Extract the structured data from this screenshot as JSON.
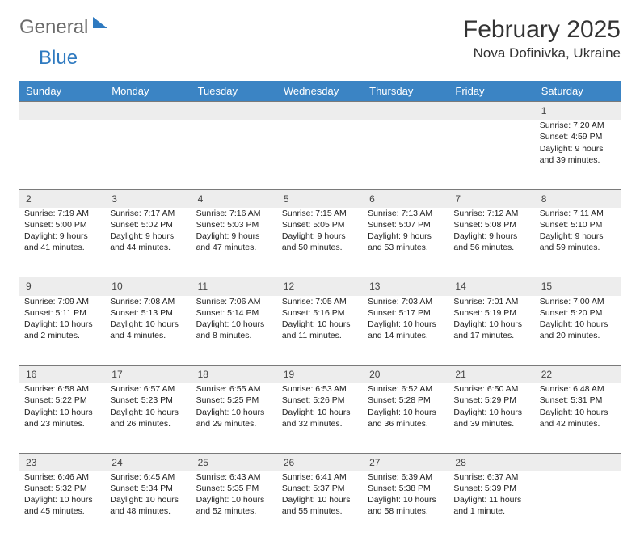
{
  "logo": {
    "part1": "General",
    "part2": "Blue"
  },
  "title": "February 2025",
  "location": "Nova Dofinivka, Ukraine",
  "colors": {
    "header_bg": "#3b84c4",
    "header_text": "#ffffff",
    "daynum_bg": "#ededed",
    "daynum_border": "#7a7a7a",
    "logo_gray": "#6b6b6b",
    "logo_blue": "#2f7ac0",
    "body_text": "#222222",
    "page_bg": "#ffffff"
  },
  "day_headers": [
    "Sunday",
    "Monday",
    "Tuesday",
    "Wednesday",
    "Thursday",
    "Friday",
    "Saturday"
  ],
  "weeks": [
    {
      "nums": [
        "",
        "",
        "",
        "",
        "",
        "",
        "1"
      ],
      "cells": [
        "",
        "",
        "",
        "",
        "",
        "",
        "Sunrise: 7:20 AM\nSunset: 4:59 PM\nDaylight: 9 hours and 39 minutes."
      ]
    },
    {
      "nums": [
        "2",
        "3",
        "4",
        "5",
        "6",
        "7",
        "8"
      ],
      "cells": [
        "Sunrise: 7:19 AM\nSunset: 5:00 PM\nDaylight: 9 hours and 41 minutes.",
        "Sunrise: 7:17 AM\nSunset: 5:02 PM\nDaylight: 9 hours and 44 minutes.",
        "Sunrise: 7:16 AM\nSunset: 5:03 PM\nDaylight: 9 hours and 47 minutes.",
        "Sunrise: 7:15 AM\nSunset: 5:05 PM\nDaylight: 9 hours and 50 minutes.",
        "Sunrise: 7:13 AM\nSunset: 5:07 PM\nDaylight: 9 hours and 53 minutes.",
        "Sunrise: 7:12 AM\nSunset: 5:08 PM\nDaylight: 9 hours and 56 minutes.",
        "Sunrise: 7:11 AM\nSunset: 5:10 PM\nDaylight: 9 hours and 59 minutes."
      ]
    },
    {
      "nums": [
        "9",
        "10",
        "11",
        "12",
        "13",
        "14",
        "15"
      ],
      "cells": [
        "Sunrise: 7:09 AM\nSunset: 5:11 PM\nDaylight: 10 hours and 2 minutes.",
        "Sunrise: 7:08 AM\nSunset: 5:13 PM\nDaylight: 10 hours and 4 minutes.",
        "Sunrise: 7:06 AM\nSunset: 5:14 PM\nDaylight: 10 hours and 8 minutes.",
        "Sunrise: 7:05 AM\nSunset: 5:16 PM\nDaylight: 10 hours and 11 minutes.",
        "Sunrise: 7:03 AM\nSunset: 5:17 PM\nDaylight: 10 hours and 14 minutes.",
        "Sunrise: 7:01 AM\nSunset: 5:19 PM\nDaylight: 10 hours and 17 minutes.",
        "Sunrise: 7:00 AM\nSunset: 5:20 PM\nDaylight: 10 hours and 20 minutes."
      ]
    },
    {
      "nums": [
        "16",
        "17",
        "18",
        "19",
        "20",
        "21",
        "22"
      ],
      "cells": [
        "Sunrise: 6:58 AM\nSunset: 5:22 PM\nDaylight: 10 hours and 23 minutes.",
        "Sunrise: 6:57 AM\nSunset: 5:23 PM\nDaylight: 10 hours and 26 minutes.",
        "Sunrise: 6:55 AM\nSunset: 5:25 PM\nDaylight: 10 hours and 29 minutes.",
        "Sunrise: 6:53 AM\nSunset: 5:26 PM\nDaylight: 10 hours and 32 minutes.",
        "Sunrise: 6:52 AM\nSunset: 5:28 PM\nDaylight: 10 hours and 36 minutes.",
        "Sunrise: 6:50 AM\nSunset: 5:29 PM\nDaylight: 10 hours and 39 minutes.",
        "Sunrise: 6:48 AM\nSunset: 5:31 PM\nDaylight: 10 hours and 42 minutes."
      ]
    },
    {
      "nums": [
        "23",
        "24",
        "25",
        "26",
        "27",
        "28",
        ""
      ],
      "cells": [
        "Sunrise: 6:46 AM\nSunset: 5:32 PM\nDaylight: 10 hours and 45 minutes.",
        "Sunrise: 6:45 AM\nSunset: 5:34 PM\nDaylight: 10 hours and 48 minutes.",
        "Sunrise: 6:43 AM\nSunset: 5:35 PM\nDaylight: 10 hours and 52 minutes.",
        "Sunrise: 6:41 AM\nSunset: 5:37 PM\nDaylight: 10 hours and 55 minutes.",
        "Sunrise: 6:39 AM\nSunset: 5:38 PM\nDaylight: 10 hours and 58 minutes.",
        "Sunrise: 6:37 AM\nSunset: 5:39 PM\nDaylight: 11 hours and 1 minute.",
        ""
      ]
    }
  ]
}
